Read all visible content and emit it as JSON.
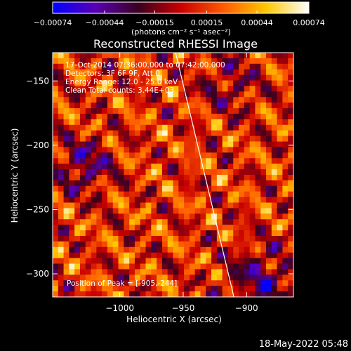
{
  "chart_data": {
    "type": "heatmap",
    "title": "Reconstructed RHESSI Image",
    "xlabel": "Heliocentric X (arcsec)",
    "ylabel": "Heliocentric Y (arcsec)",
    "xlim": [
      -1053,
      -863
    ],
    "ylim": [
      -318,
      -128
    ],
    "x_ticks": [
      -1000,
      -950,
      -900
    ],
    "x_tick_labels": [
      "−1000",
      "−950",
      "−900"
    ],
    "y_ticks": [
      -150,
      -200,
      -250,
      -300
    ],
    "y_tick_labels": [
      "−150",
      "−200",
      "−250",
      "−300"
    ],
    "colorbar": {
      "range": [
        -0.00074,
        0.00074
      ],
      "ticks": [
        -0.00074,
        -0.00044,
        -0.00015,
        0.00015,
        0.00044,
        0.00074
      ],
      "tick_labels": [
        "−0.00074",
        "−0.00044",
        "−0.00015",
        "0.00015",
        "0.00044",
        "0.00074"
      ],
      "unit_label": "(photons cm⁻² s⁻¹ asec⁻²)",
      "colors": [
        "#0000ff",
        "#5a00b4",
        "#3a0020",
        "#c80000",
        "#ff5a00",
        "#ffc800",
        "#ffffff"
      ]
    },
    "annotations": [
      "17-Oct-2014 07:36:00.000 to 07:42:00.000",
      "Detectors: 3F 6F 9F, Att 0",
      "Energy Range: 12.0 - 25.0 keV",
      "Clean    Total counts: 3.44E+03"
    ],
    "peak_label": "Position of Peak = [-905,-244]",
    "limb_line": [
      {
        "x": -956,
        "y": -128
      },
      {
        "x": -910,
        "y": -318
      }
    ],
    "timestamp": "18-May-2022 05:48"
  }
}
